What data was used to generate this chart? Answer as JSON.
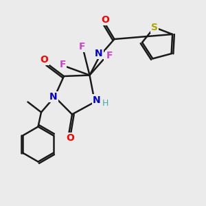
{
  "bg_color": "#ebebeb",
  "bond_color": "#1a1a1a",
  "atom_colors": {
    "O": "#ff0000",
    "N": "#0000cc",
    "F": "#cc44cc",
    "S": "#aaaa00",
    "H": "#44aaaa",
    "C": "#1a1a1a"
  },
  "figsize": [
    3.0,
    3.0
  ],
  "dpi": 100
}
